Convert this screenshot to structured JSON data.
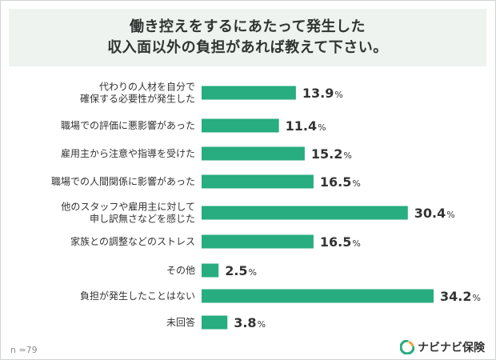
{
  "title": {
    "line1": "働き控えをするにあたって発生した",
    "line2": "収入面以外の負担があれば教えて下さい。"
  },
  "footnote": "n =79",
  "brand": {
    "name": "ナビナビ保険",
    "bar_color": "#27ad7f",
    "logo_colors": [
      "#27ad7f",
      "#f0a23b"
    ]
  },
  "chart_data": {
    "type": "bar",
    "orientation": "horizontal",
    "categories": [
      [
        "代わりの人材を自分で",
        "確保する必要性が発生した"
      ],
      [
        "職場での評価に悪影響があった"
      ],
      [
        "雇用主から注意や指導を受けた"
      ],
      [
        "職場での人間関係に影響があった"
      ],
      [
        "他のスタッフや雇用主に対して",
        "申し訳無さなどを感じた"
      ],
      [
        "家族との調整などのストレス"
      ],
      [
        "その他"
      ],
      [
        "負担が発生したことはない"
      ],
      [
        "未回答"
      ]
    ],
    "values": [
      13.9,
      11.4,
      15.2,
      16.5,
      30.4,
      16.5,
      2.5,
      34.2,
      3.8
    ],
    "unit": "%",
    "xlim": [
      0,
      34.2
    ],
    "grid": false,
    "legend": "none"
  }
}
